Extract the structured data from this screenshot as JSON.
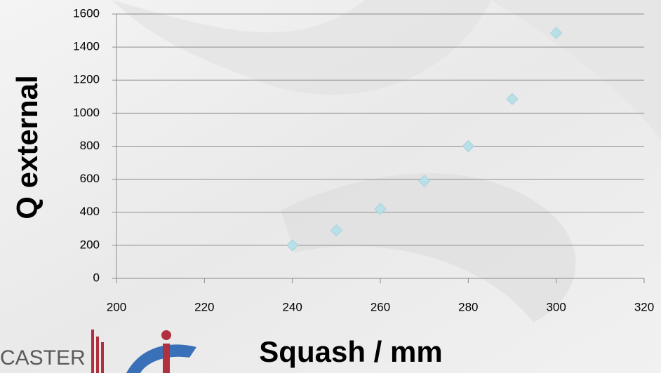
{
  "chart_data": {
    "type": "scatter",
    "x_label": "Squash / mm",
    "y_label": "Q external",
    "x": [
      240,
      250,
      260,
      270,
      280,
      290,
      300
    ],
    "values": [
      200,
      290,
      420,
      590,
      800,
      1085,
      1485
    ],
    "color": "#b9e0e8",
    "xlim": [
      200,
      320
    ],
    "xticks": [
      200,
      220,
      240,
      260,
      280,
      300,
      320
    ],
    "ylim": [
      0,
      1600
    ],
    "yticks": [
      0,
      200,
      400,
      600,
      800,
      1000,
      1200,
      1400,
      1600
    ],
    "grid": true
  },
  "logo": {
    "text": "CASTER"
  }
}
